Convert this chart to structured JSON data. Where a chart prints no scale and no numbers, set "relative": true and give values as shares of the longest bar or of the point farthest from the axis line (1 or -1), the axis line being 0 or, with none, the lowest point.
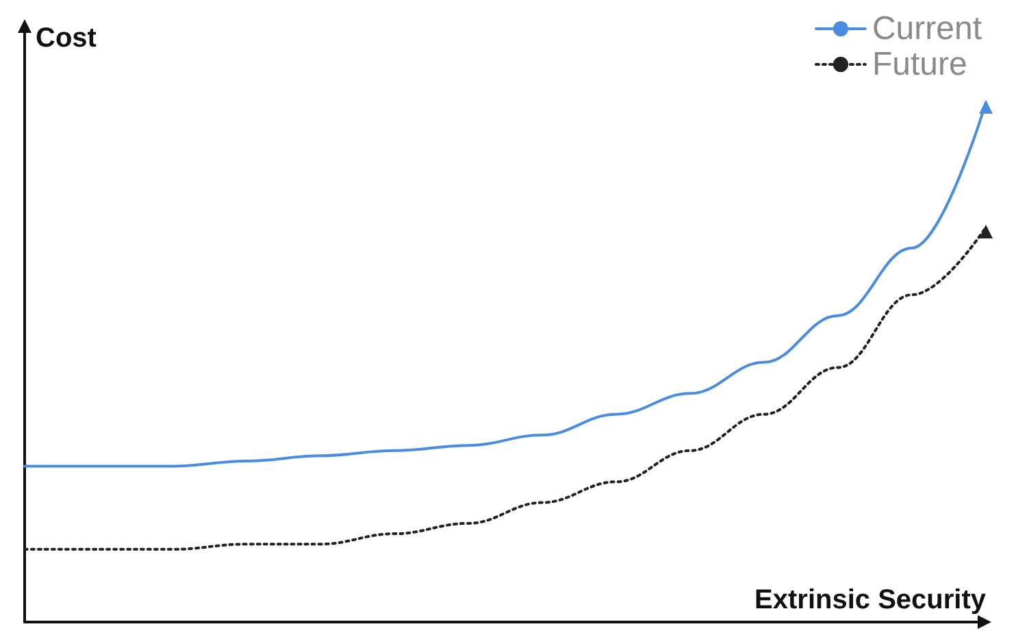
{
  "chart_data": {
    "type": "line",
    "relative": true,
    "xlabel": "Extrinsic Security",
    "ylabel": "Cost",
    "categories": [
      null,
      null,
      null,
      null,
      null,
      null,
      null,
      null,
      null,
      null,
      null,
      null,
      null,
      null
    ],
    "series": [
      {
        "name": "Current",
        "color": "#4a8de0",
        "line_style": "solid",
        "values": [
          0.3,
          0.3,
          0.3,
          0.31,
          0.32,
          0.33,
          0.34,
          0.36,
          0.4,
          0.44,
          0.5,
          0.59,
          0.72,
          1
        ]
      },
      {
        "name": "Future",
        "color": "#222222",
        "line_style": "dotted",
        "values": [
          0.14,
          0.14,
          0.14,
          0.15,
          0.15,
          0.17,
          0.19,
          0.23,
          0.27,
          0.33,
          0.4,
          0.49,
          0.63,
          0.76
        ]
      }
    ],
    "legend": "top right",
    "grid": false,
    "marker": "none"
  }
}
